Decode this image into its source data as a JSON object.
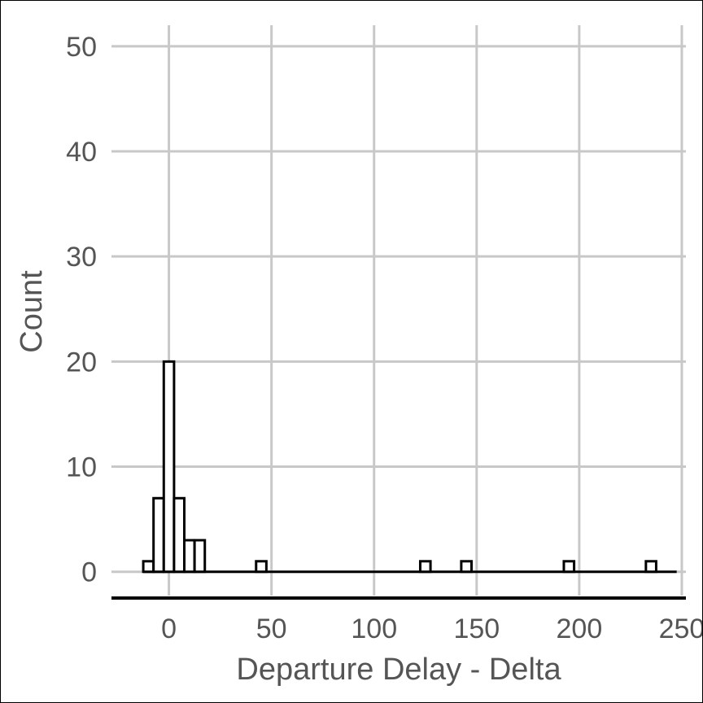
{
  "chart_data": {
    "type": "histogram",
    "xlabel": "Departure Delay - Delta",
    "ylabel": "Count",
    "xlim": [
      -28,
      252
    ],
    "ylim": [
      -2.5,
      52
    ],
    "xticks": [
      0,
      50,
      100,
      150,
      200,
      250
    ],
    "yticks": [
      0,
      10,
      20,
      30,
      40,
      50
    ],
    "grid": true,
    "bin_width": 5,
    "range": [
      -12.5,
      247.5
    ],
    "bins": [
      {
        "x0": -12.5,
        "x1": -7.5,
        "count": 1
      },
      {
        "x0": -7.5,
        "x1": -2.5,
        "count": 7
      },
      {
        "x0": -2.5,
        "x1": 2.5,
        "count": 20
      },
      {
        "x0": 2.5,
        "x1": 7.5,
        "count": 7
      },
      {
        "x0": 7.5,
        "x1": 12.5,
        "count": 3
      },
      {
        "x0": 12.5,
        "x1": 17.5,
        "count": 3
      },
      {
        "x0": 42.5,
        "x1": 47.5,
        "count": 1
      },
      {
        "x0": 122.5,
        "x1": 127.5,
        "count": 1
      },
      {
        "x0": 142.5,
        "x1": 147.5,
        "count": 1
      },
      {
        "x0": 192.5,
        "x1": 197.5,
        "count": 1
      },
      {
        "x0": 232.5,
        "x1": 237.5,
        "count": 1
      }
    ]
  }
}
